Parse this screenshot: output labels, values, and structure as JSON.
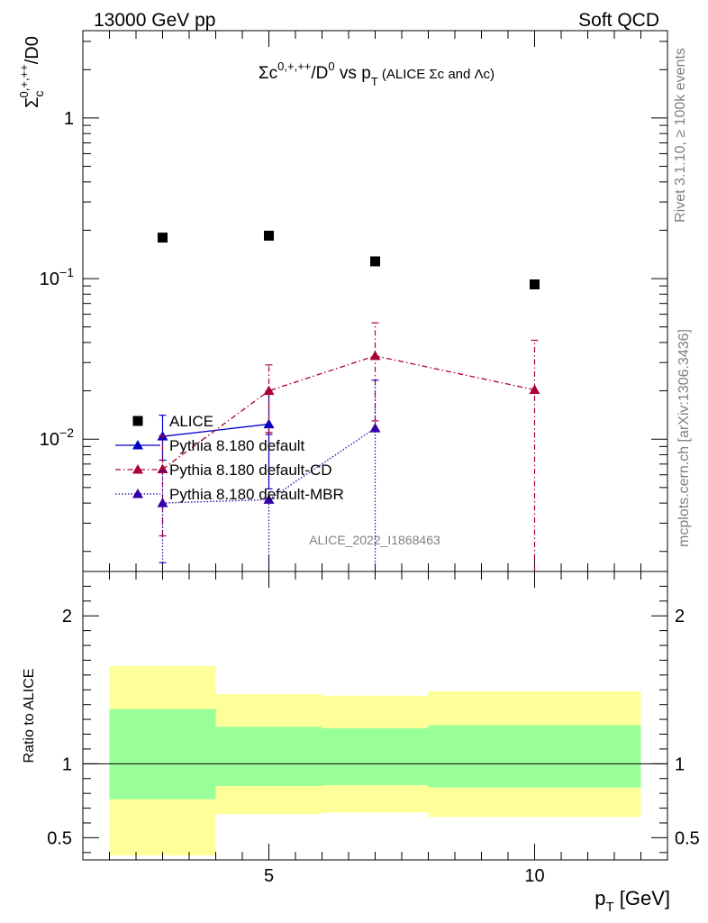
{
  "header": {
    "left": "13000 GeV pp",
    "right": "Soft QCD"
  },
  "side": {
    "rivet": "Rivet 3.1.10, ≥ 100k events",
    "mcplots": "mcplots.cern.ch [arXiv:1306.3436]"
  },
  "chart_data": [
    {
      "type": "scatter",
      "title_parts": {
        "a": "Σc",
        "a_sup": "0,+,++",
        "b": "/D",
        "b_sup": "0",
        "c": " vs p",
        "c_sub": "T",
        "d": " (ALICE Σc and Λc)"
      },
      "ylabel_parts": {
        "main": "Σ",
        "sub": "c",
        "sup": "0,+,++",
        "tail": "/D0"
      },
      "watermark": "ALICE_2022_I1868463",
      "xlim": [
        1.5,
        12.5
      ],
      "ylog": true,
      "ylim": [
        0.0015,
        3.5
      ],
      "yticks": [
        {
          "v": 1,
          "label": "1"
        },
        {
          "v": 0.1,
          "label": "10",
          "sup": "−1"
        },
        {
          "v": 0.01,
          "label": "10",
          "sup": "−2"
        }
      ],
      "legend_position": "bottom-left",
      "series": [
        {
          "name": "ALICE",
          "color": "#000000",
          "marker": "square",
          "points": [
            {
              "x": 3,
              "y": 0.18
            },
            {
              "x": 5,
              "y": 0.185
            },
            {
              "x": 7,
              "y": 0.128
            },
            {
              "x": 10,
              "y": 0.092
            }
          ]
        },
        {
          "name": "Pythia 8.180 default",
          "color": "#0000cc",
          "marker": "triangle",
          "line": "solid",
          "points": [
            {
              "x": 3,
              "y": 0.0104,
              "lo": 0.0074,
              "hi": 0.0141
            },
            {
              "x": 5,
              "y": 0.0124,
              "lo": 0.0049,
              "hi": 0.0199
            }
          ]
        },
        {
          "name": "Pythia 8.180 default-CD",
          "color": "#aa0033",
          "marker": "triangle",
          "line": "dashdot",
          "points": [
            {
              "x": 3,
              "y": 0.0065,
              "lo": 0.0025,
              "hi": 0.0105
            },
            {
              "x": 5,
              "y": 0.02,
              "lo": 0.011,
              "hi": 0.029
            },
            {
              "x": 7,
              "y": 0.033,
              "lo": 0.013,
              "hi": 0.053
            },
            {
              "x": 10,
              "y": 0.0203,
              "lo": 0.0015,
              "hi": 0.0413
            }
          ]
        },
        {
          "name": "Pythia 8.180 default-MBR",
          "color": "#3300aa",
          "marker": "triangle",
          "line": "dotted",
          "points": [
            {
              "x": 3,
              "y": 0.004,
              "lo": 0.0017,
              "hi": 0.0063
            },
            {
              "x": 5,
              "y": 0.0042,
              "lo": 0.0015,
              "hi": 0.0107
            },
            {
              "x": 7,
              "y": 0.0117,
              "lo": 0.0015,
              "hi": 0.0233
            }
          ]
        }
      ]
    },
    {
      "type": "area",
      "ylabel": "Ratio to ALICE",
      "xlabel": {
        "main": "p",
        "sub": "T",
        "tail": " [GeV]"
      },
      "xlim": [
        1.5,
        12.5
      ],
      "ylim": [
        0.35,
        2.3
      ],
      "xticks": [
        {
          "v": 5,
          "label": "5"
        },
        {
          "v": 10,
          "label": "10"
        }
      ],
      "yticks": [
        {
          "v": 2,
          "label": "2"
        },
        {
          "v": 1,
          "label": "1"
        },
        {
          "v": 0.5,
          "label": "0.5"
        }
      ],
      "reference_line": 1,
      "band_colors": {
        "outer": "#ffff99",
        "inner": "#99ff99",
        "line": "#000000"
      },
      "bands": [
        {
          "x0": 2,
          "x1": 4,
          "outer": [
            0.38,
            1.66
          ],
          "inner": [
            0.76,
            1.37
          ]
        },
        {
          "x0": 4,
          "x1": 6,
          "outer": [
            0.66,
            1.47
          ],
          "inner": [
            0.85,
            1.25
          ]
        },
        {
          "x0": 6,
          "x1": 8,
          "outer": [
            0.67,
            1.46
          ],
          "inner": [
            0.855,
            1.24
          ]
        },
        {
          "x0": 8,
          "x1": 12,
          "outer": [
            0.64,
            1.49
          ],
          "inner": [
            0.84,
            1.26
          ]
        }
      ]
    }
  ]
}
